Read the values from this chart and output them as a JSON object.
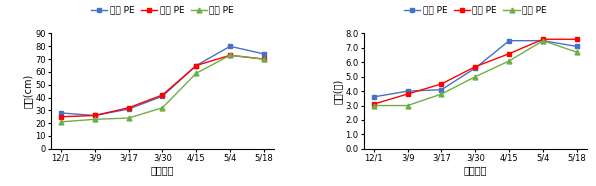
{
  "x_labels": [
    "12/1",
    "3/9",
    "3/17",
    "3/30",
    "4/15",
    "5/4",
    "5/18"
  ],
  "chart1": {
    "ylabel": "초장(cm)",
    "xlabel": "조사날짜",
    "ylim": [
      0,
      90
    ],
    "yticks": [
      0,
      10,
      20,
      30,
      40,
      50,
      60,
      70,
      80,
      90
    ],
    "series": {
      "백색 PE": {
        "values": [
          28,
          26,
          31,
          41,
          65,
          80,
          74
        ],
        "color": "#4472C4",
        "marker": "s"
      },
      "녹색 PE": {
        "values": [
          25,
          26,
          32,
          42,
          65,
          73,
          70
        ],
        "color": "#FF0000",
        "marker": "s"
      },
      "흑색 PE": {
        "values": [
          21,
          23,
          24,
          32,
          59,
          73,
          70
        ],
        "color": "#70AD47",
        "marker": "^"
      }
    }
  },
  "chart2": {
    "ylabel": "엽수(매)",
    "xlabel": "조사날짜",
    "ylim": [
      0.0,
      8.0
    ],
    "yticks": [
      0.0,
      1.0,
      2.0,
      3.0,
      4.0,
      5.0,
      6.0,
      7.0,
      8.0
    ],
    "series": {
      "백색 PE": {
        "values": [
          3.6,
          4.0,
          4.1,
          5.6,
          7.5,
          7.5,
          7.1
        ],
        "color": "#4472C4",
        "marker": "s"
      },
      "녹색 PE": {
        "values": [
          3.1,
          3.8,
          4.5,
          5.7,
          6.6,
          7.6,
          7.6
        ],
        "color": "#FF0000",
        "marker": "s"
      },
      "흑색 PE": {
        "values": [
          3.0,
          3.0,
          3.8,
          5.0,
          6.1,
          7.5,
          6.7
        ],
        "color": "#70AD47",
        "marker": "^"
      }
    }
  },
  "legend_names": [
    "백색 PE",
    "녹색 PE",
    "흑색 PE"
  ]
}
